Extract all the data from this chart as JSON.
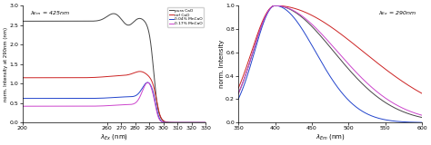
{
  "left": {
    "xlabel": "$\\lambda_{Ex}$ (nm)",
    "ylabel": "norm. Intensity at 290nm (nm)",
    "xlim": [
      200,
      330
    ],
    "ylim": [
      0,
      3.0
    ],
    "yticks": [
      0.0,
      0.5,
      1.0,
      1.5,
      2.0,
      2.5,
      3.0
    ],
    "xticks": [
      200,
      260,
      270,
      280,
      290,
      300,
      310,
      320,
      330
    ],
    "annotation": "$\\lambda_{Em}$ = 425nm",
    "series": [
      {
        "label": "pura CaO",
        "color": "#444444"
      },
      {
        "label": "ref CaO",
        "color": "#cc2222"
      },
      {
        "label": "0.04% MnCaO",
        "color": "#2244cc"
      },
      {
        "label": "0.17% MnCaO",
        "color": "#cc44cc"
      }
    ]
  },
  "right": {
    "xlabel": "$\\lambda_{Em}$ (nm)",
    "ylabel": "norm. Intensity",
    "xlim": [
      350,
      600
    ],
    "ylim": [
      0,
      1.0
    ],
    "yticks": [
      0.0,
      0.2,
      0.4,
      0.6,
      0.8,
      1.0
    ],
    "xticks": [
      350,
      400,
      450,
      500,
      550,
      600
    ],
    "annotation": "$\\lambda_{Ex}$ = 290nm",
    "series": [
      {
        "label": "pura CaO",
        "color": "#444444"
      },
      {
        "label": "ref CaO",
        "color": "#cc2222"
      },
      {
        "label": "0.04% MnCaO",
        "color": "#2244cc"
      },
      {
        "label": "0.17% MnCaO",
        "color": "#cc44cc"
      }
    ]
  },
  "legend_labels": [
    "pura CaO",
    "ref CaO",
    "0.04% MnCaO",
    "0.17% MnCaO"
  ],
  "legend_colors": [
    "#444444",
    "#cc2222",
    "#2244cc",
    "#cc44cc"
  ],
  "background_color": "#ffffff"
}
